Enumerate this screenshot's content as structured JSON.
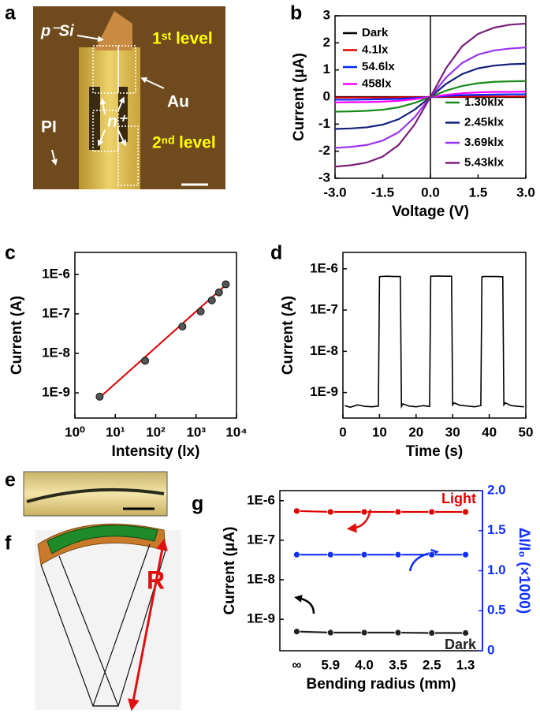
{
  "panels": {
    "a": {
      "label": "a",
      "p_si": "p⁻Si",
      "first_level": "1ˢᵗ level",
      "au": "Au",
      "n_plus": "n⁺",
      "second_level": "2ⁿᵈ level",
      "pi": "PI"
    },
    "e": {
      "label": "e"
    },
    "f": {
      "label": "f",
      "radius": "R"
    }
  },
  "chart_data": [
    {
      "label": "b",
      "type": "line",
      "x": [
        -3,
        -2.5,
        -2,
        -1.5,
        -1,
        -0.5,
        0,
        0.5,
        1,
        1.5,
        2,
        2.5,
        3
      ],
      "series": [
        {
          "name": "Dark",
          "color": "#000000",
          "values": [
            0,
            0,
            0,
            0,
            0,
            0,
            0,
            0,
            0,
            0,
            0,
            0,
            0
          ]
        },
        {
          "name": "4.1lx",
          "color": "#e00000",
          "values": [
            -0.02,
            -0.02,
            -0.02,
            -0.02,
            -0.01,
            -0.01,
            0,
            0.01,
            0.01,
            0.02,
            0.02,
            0.02,
            0.02
          ]
        },
        {
          "name": "54.6lx",
          "color": "#0028ff",
          "values": [
            -0.1,
            -0.1,
            -0.09,
            -0.08,
            -0.07,
            -0.04,
            0,
            0.04,
            0.07,
            0.08,
            0.09,
            0.1,
            0.1
          ]
        },
        {
          "name": "458lx",
          "color": "#ff00ff",
          "values": [
            -0.2,
            -0.19,
            -0.19,
            -0.17,
            -0.14,
            -0.08,
            0,
            0.08,
            0.14,
            0.17,
            0.19,
            0.19,
            0.2
          ]
        },
        {
          "name": "1.30klx",
          "color": "#1a8a1a",
          "values": [
            -0.54,
            -0.53,
            -0.51,
            -0.47,
            -0.38,
            -0.22,
            0,
            0.24,
            0.41,
            0.51,
            0.56,
            0.58,
            0.59
          ]
        },
        {
          "name": "2.45klx",
          "color": "#14207a",
          "values": [
            -1.18,
            -1.16,
            -1.12,
            -1.02,
            -0.82,
            -0.47,
            0,
            0.49,
            0.85,
            1.06,
            1.16,
            1.21,
            1.23
          ]
        },
        {
          "name": "3.69klx",
          "color": "#9a30f0",
          "values": [
            -1.88,
            -1.84,
            -1.77,
            -1.61,
            -1.3,
            -0.75,
            0,
            0.73,
            1.26,
            1.57,
            1.72,
            1.79,
            1.83
          ]
        },
        {
          "name": "5.43klx",
          "color": "#7a1f7a",
          "values": [
            -2.57,
            -2.52,
            -2.42,
            -2.2,
            -1.77,
            -1.02,
            0,
            1.08,
            1.88,
            2.33,
            2.56,
            2.67,
            2.71
          ]
        }
      ],
      "xlim": [
        -3,
        3
      ],
      "ylim": [
        -3,
        3
      ],
      "xticks": [
        {
          "value": -3,
          "label": "-3.0"
        },
        -1.5,
        {
          "value": 0,
          "label": "0.0"
        },
        1.5,
        {
          "value": 3,
          "label": "3.0"
        }
      ],
      "yticks": [
        -3,
        -2,
        -1,
        0,
        1,
        2,
        3
      ],
      "xlabel": "Voltage (V)",
      "ylabel": "Current (μA)"
    },
    {
      "label": "c",
      "type": "scatter",
      "xscale": "log",
      "yscale": "log",
      "x": [
        4.1,
        54.6,
        458,
        1300,
        2450,
        3690,
        5430
      ],
      "values": [
        8e-10,
        6.5e-09,
        4.8e-08,
        1.15e-07,
        2.2e-07,
        3.5e-07,
        5.6e-07
      ],
      "color": "#555555",
      "fit": {
        "x": [
          4.1,
          5430
        ],
        "values": [
          7.6e-10,
          5.4e-07
        ],
        "color": "#e00000"
      },
      "xlim": [
        1,
        10000
      ],
      "ylim": [
        2.3e-10,
        3.6e-06
      ],
      "xticks": [
        {
          "value": 1,
          "label": "10⁰"
        },
        {
          "value": 10,
          "label": "10¹"
        },
        {
          "value": 100,
          "label": "10²"
        },
        {
          "value": 1000,
          "label": "10³"
        },
        {
          "value": 10000,
          "label": "10⁴"
        }
      ],
      "yticks": [
        {
          "value": 1e-09,
          "label": "1E-9"
        },
        {
          "value": 1e-08,
          "label": "1E-8"
        },
        {
          "value": 1e-07,
          "label": "1E-7"
        },
        {
          "value": 1e-06,
          "label": "1E-6"
        }
      ],
      "xlabel": "Intensity (lx)",
      "ylabel": "Current (A)"
    },
    {
      "label": "d",
      "type": "line",
      "yscale": "log",
      "x": [
        0.5,
        2,
        4,
        6,
        8,
        9.7,
        10,
        10.3,
        12,
        14,
        15.7,
        16,
        16.4,
        18,
        20,
        22,
        23.7,
        24,
        24.3,
        26,
        28,
        29.7,
        30,
        30.4,
        32,
        34,
        36,
        37.7,
        38,
        38.3,
        40,
        42,
        43.7,
        44,
        44.4,
        46,
        48,
        49.5
      ],
      "values": [
        4.8e-10,
        4.4e-10,
        5e-10,
        4.6e-10,
        4.5e-10,
        4.7e-10,
        6.4e-07,
        6.5e-07,
        6.6e-07,
        6.5e-07,
        6.5e-07,
        4.6e-10,
        5.3e-10,
        4.7e-10,
        4.5e-10,
        4.8e-10,
        4.6e-10,
        6.6e-07,
        6.6e-07,
        6.7e-07,
        6.6e-07,
        6.6e-07,
        5e-10,
        5.6e-10,
        4.9e-10,
        4.7e-10,
        4.5e-10,
        4.8e-10,
        6.4e-07,
        6.5e-07,
        6.5e-07,
        6.5e-07,
        6.4e-07,
        5e-10,
        5.6e-10,
        4.8e-10,
        4.6e-10,
        4.5e-10
      ],
      "color": "#000000",
      "xlim": [
        0,
        50
      ],
      "ylim": [
        2.4e-10,
        2.5e-06
      ],
      "xticks": [
        0,
        10,
        20,
        30,
        40,
        50
      ],
      "yticks": [
        {
          "value": 1e-09,
          "label": "1E-9"
        },
        {
          "value": 1e-08,
          "label": "1E-8"
        },
        {
          "value": 1e-07,
          "label": "1E-7"
        },
        {
          "value": 1e-06,
          "label": "1E-6"
        }
      ],
      "xlabel": "Time (s)",
      "ylabel": "Current (A)"
    },
    {
      "label": "g",
      "type": "line",
      "yscale": "log",
      "categories": [
        "∞",
        "5.9",
        "4.0",
        "3.5",
        "2.5",
        "1.3"
      ],
      "series": [
        {
          "name": "Light",
          "color": "#e00000",
          "values": [
            5.5e-07,
            5.2e-07,
            5.2e-07,
            5.2e-07,
            5.2e-07,
            5.2e-07
          ]
        },
        {
          "color": "#1030ff",
          "axis": "y2",
          "values": [
            1.2,
            1.2,
            1.2,
            1.2,
            1.2,
            1.2
          ]
        },
        {
          "name": "Dark",
          "color": "#222222",
          "values": [
            4.9e-10,
            4.6e-10,
            4.6e-10,
            4.6e-10,
            4.5e-10,
            4.5e-10
          ]
        }
      ],
      "ylim": [
        1.6e-10,
        1.8e-06
      ],
      "y2lim": [
        0,
        2
      ],
      "yticks": [
        {
          "value": 1e-09,
          "label": "1E-9"
        },
        {
          "value": 1e-08,
          "label": "1E-8"
        },
        {
          "value": 1e-07,
          "label": "1E-7"
        },
        {
          "value": 1e-06,
          "label": "1E-6"
        }
      ],
      "y2ticks": [
        0,
        0.5,
        {
          "value": 1,
          "label": "1.0"
        },
        1.5,
        {
          "value": 2,
          "label": "2.0"
        }
      ],
      "xlabel": "Bending radius (mm)",
      "ylabel": "Current (μA)",
      "y2label": "ΔI/I₀ (×1000)"
    }
  ]
}
